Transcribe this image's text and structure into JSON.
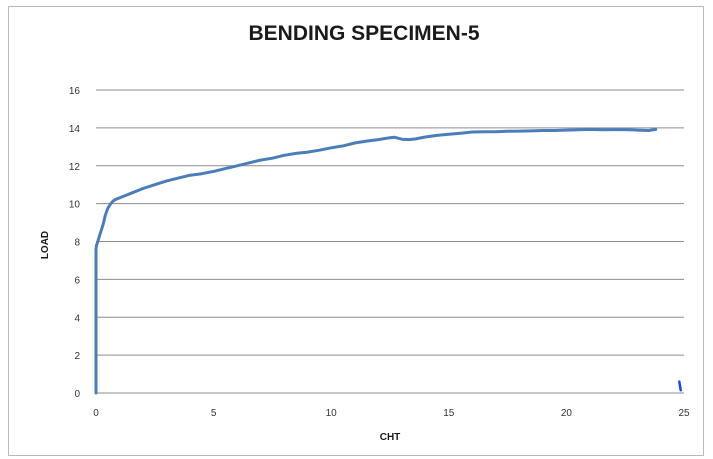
{
  "chart_data": {
    "type": "line",
    "title": "BENDING SPECIMEN-5",
    "xlabel": "CHT",
    "ylabel": "LOAD",
    "xlim": [
      0,
      25
    ],
    "ylim": [
      0,
      16
    ],
    "x_ticks": [
      "0",
      "5",
      "10",
      "15",
      "20",
      "25"
    ],
    "y_ticks": [
      "0",
      "2",
      "4",
      "6",
      "8",
      "10",
      "12",
      "14",
      "16"
    ],
    "grid": "horizontal",
    "legend": "none",
    "series": [
      {
        "color": "#4a7ebb",
        "x": [
          0,
          0,
          0.02,
          0.1,
          0.2,
          0.3,
          0.4,
          0.5,
          0.6,
          0.7,
          0.8,
          1.0,
          1.2,
          1.5,
          2.0,
          2.5,
          3.0,
          3.5,
          4.0,
          4.5,
          5.0,
          5.5,
          6.0,
          6.5,
          7.0,
          7.5,
          8.0,
          8.5,
          9.0,
          9.5,
          10.0,
          10.5,
          11.0,
          11.5,
          12.0,
          12.5,
          12.7,
          13.0,
          13.3,
          13.6,
          14.0,
          14.5,
          15.0,
          15.5,
          16.0,
          16.5,
          17.0,
          17.5,
          18.0,
          18.5,
          19.0,
          19.5,
          20.0,
          20.5,
          21.0,
          21.5,
          22.0,
          22.5,
          23.0,
          23.5,
          23.8
        ],
        "y": [
          0,
          7.6,
          7.8,
          8.1,
          8.5,
          8.9,
          9.4,
          9.75,
          9.95,
          10.1,
          10.2,
          10.3,
          10.4,
          10.55,
          10.8,
          11.0,
          11.2,
          11.35,
          11.5,
          11.58,
          11.7,
          11.85,
          12.0,
          12.15,
          12.3,
          12.4,
          12.55,
          12.65,
          12.72,
          12.82,
          12.95,
          13.05,
          13.2,
          13.3,
          13.38,
          13.48,
          13.5,
          13.4,
          13.38,
          13.42,
          13.52,
          13.6,
          13.66,
          13.72,
          13.78,
          13.8,
          13.8,
          13.82,
          13.83,
          13.84,
          13.86,
          13.86,
          13.88,
          13.9,
          13.92,
          13.9,
          13.91,
          13.91,
          13.88,
          13.86,
          13.92
        ]
      },
      {
        "color": "#1f3fff",
        "x": [
          24.8,
          24.86
        ],
        "y": [
          0.6,
          0.15
        ]
      }
    ]
  }
}
